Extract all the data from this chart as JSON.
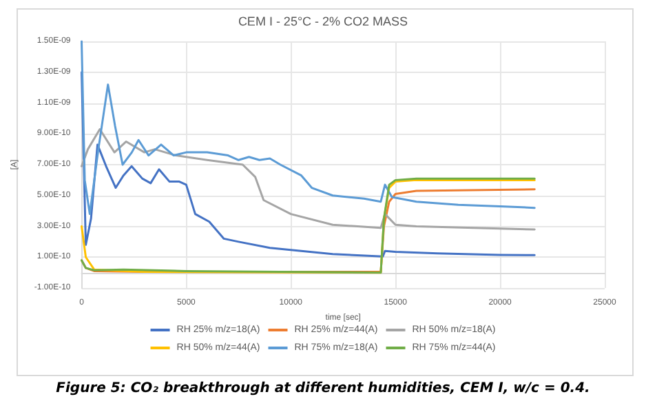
{
  "chart_data": {
    "type": "line",
    "title": "CEM I - 25°C - 2% CO2 MASS",
    "xlabel": "time [sec]",
    "ylabel": "[A]",
    "annotations": [
      "Figure 5: CO₂ breakthrough at different humidities, CEM I, w/c = 0.4."
    ],
    "xlim": [
      0,
      25000
    ],
    "xticks": [
      0,
      5000,
      10000,
      15000,
      20000,
      25000
    ],
    "ylim": [
      -1e-10,
      1.5e-09
    ],
    "yticks": [
      {
        "value": -1e-10,
        "label": "-1.00E-10"
      },
      {
        "value": 1e-10,
        "label": "1.00E-10"
      },
      {
        "value": 3e-10,
        "label": "3.00E-10"
      },
      {
        "value": 5e-10,
        "label": "5.00E-10"
      },
      {
        "value": 7e-10,
        "label": "7.00E-10"
      },
      {
        "value": 9e-10,
        "label": "9.00E-10"
      },
      {
        "value": 1.1e-09,
        "label": "1.10E-09"
      },
      {
        "value": 1.3e-09,
        "label": "1.30E-09"
      },
      {
        "value": 1.5e-09,
        "label": "1.50E-09"
      }
    ],
    "grid": true,
    "legend": "bottom",
    "marker": "none",
    "line_style": "solid",
    "series": [
      {
        "name": "RH 25% m/z=18(A)",
        "color": "#4472c4",
        "x": [
          0,
          200,
          450,
          760,
          1200,
          1630,
          2000,
          2390,
          2900,
          3300,
          3700,
          4200,
          4670,
          5000,
          5430,
          6100,
          6800,
          7500,
          9000,
          10500,
          12000,
          14400,
          14500,
          15000,
          17000,
          20000,
          21650
        ],
        "values": [
          1.3e-09,
          1.8e-10,
          3.5e-10,
          8.3e-10,
          6.8e-10,
          5.5e-10,
          6.3e-10,
          6.9e-10,
          6.1e-10,
          5.8e-10,
          6.7e-10,
          5.9e-10,
          5.9e-10,
          5.7e-10,
          3.8e-10,
          3.3e-10,
          2.2e-10,
          2e-10,
          1.6e-10,
          1.4e-10,
          1.2e-10,
          1.05e-10,
          1.4e-10,
          1.35e-10,
          1.25e-10,
          1.15e-10,
          1.13e-10
        ]
      },
      {
        "name": "RH 25% m/z=44(A)",
        "color": "#ed7d31",
        "x": [
          0,
          200,
          600,
          3000,
          14300,
          14450,
          14700,
          15000,
          16000,
          21650
        ],
        "values": [
          8e-11,
          3e-11,
          1e-11,
          5e-12,
          5e-12,
          3e-10,
          4.6e-10,
          5.1e-10,
          5.3e-10,
          5.4e-10
        ]
      },
      {
        "name": "RH 50% m/z=18(A)",
        "color": "#a5a5a5",
        "x": [
          0,
          300,
          870,
          1570,
          2130,
          3000,
          3500,
          4500,
          6000,
          7700,
          8300,
          8700,
          10000,
          12000,
          14300,
          14500,
          15000,
          16000,
          20000,
          21650
        ],
        "values": [
          6.9e-10,
          8e-10,
          9.3e-10,
          7.8e-10,
          8.5e-10,
          7.8e-10,
          8e-10,
          7.6e-10,
          7.3e-10,
          7e-10,
          6.2e-10,
          4.7e-10,
          3.8e-10,
          3.1e-10,
          2.9e-10,
          3.8e-10,
          3.1e-10,
          3e-10,
          2.85e-10,
          2.8e-10
        ]
      },
      {
        "name": "RH 50% m/z=44(A)",
        "color": "#ffc000",
        "x": [
          0,
          200,
          600,
          3000,
          14300,
          14450,
          14700,
          15000,
          16000,
          21650
        ],
        "values": [
          3e-10,
          1e-10,
          2e-11,
          5e-12,
          0,
          3.5e-10,
          5.5e-10,
          5.9e-10,
          6e-10,
          6e-10
        ]
      },
      {
        "name": "RH 75% m/z=18(A)",
        "color": "#5b9bd5",
        "x": [
          0,
          150,
          390,
          800,
          1260,
          1600,
          1960,
          2400,
          2720,
          3200,
          3800,
          4400,
          5000,
          6000,
          7000,
          7500,
          8000,
          8500,
          9000,
          9500,
          10500,
          11000,
          12000,
          13500,
          14300,
          14500,
          14830,
          16000,
          18000,
          20000,
          21650
        ],
        "values": [
          1.5e-09,
          6e-10,
          3.8e-10,
          8e-10,
          1.22e-09,
          9.5e-10,
          7e-10,
          7.8e-10,
          8.6e-10,
          7.6e-10,
          8.3e-10,
          7.6e-10,
          7.8e-10,
          7.8e-10,
          7.6e-10,
          7.3e-10,
          7.5e-10,
          7.3e-10,
          7.4e-10,
          7e-10,
          6.3e-10,
          5.5e-10,
          5e-10,
          4.8e-10,
          4.6e-10,
          5.7e-10,
          4.9e-10,
          4.6e-10,
          4.4e-10,
          4.3e-10,
          4.2e-10
        ]
      },
      {
        "name": "RH 75% m/z=44(A)",
        "color": "#70ad47",
        "x": [
          0,
          200,
          600,
          2000,
          5000,
          14300,
          14450,
          14700,
          15000,
          16000,
          21650
        ],
        "values": [
          8e-11,
          3e-11,
          1.5e-11,
          2e-11,
          1e-11,
          0,
          3.5e-10,
          5.7e-10,
          6e-10,
          6.1e-10,
          6.1e-10
        ]
      }
    ]
  }
}
